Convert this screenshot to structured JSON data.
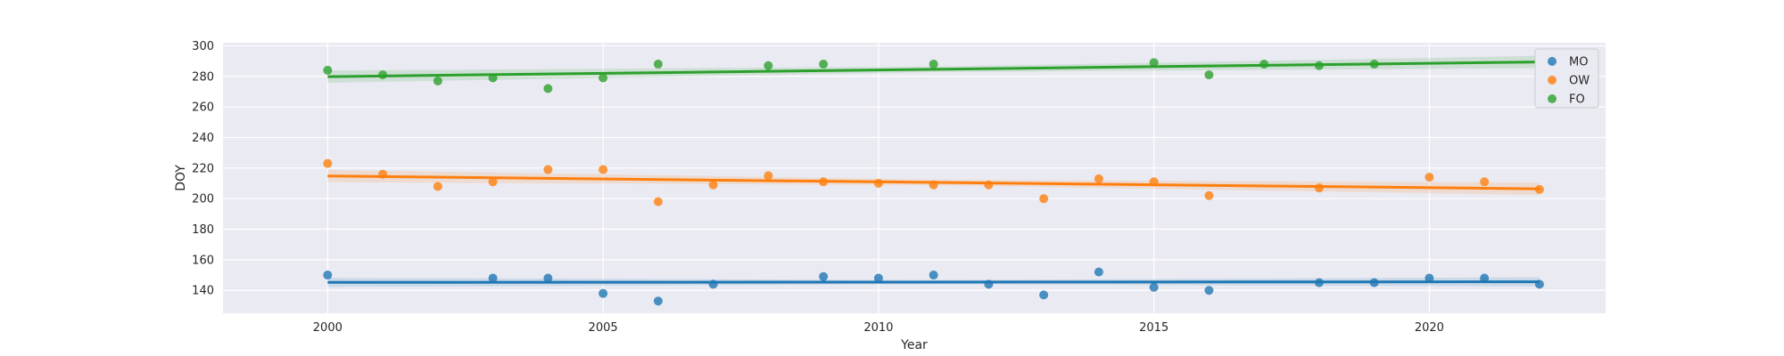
{
  "chart_data": {
    "type": "scatter",
    "xlabel": "Year",
    "ylabel": "DOY",
    "xlim": [
      1998.1,
      2023.2
    ],
    "ylim": [
      125,
      302
    ],
    "xticks": [
      2000,
      2005,
      2010,
      2015,
      2020
    ],
    "yticks": [
      140,
      160,
      180,
      200,
      220,
      240,
      260,
      280,
      300
    ],
    "grid": true,
    "legend_position": "top-right",
    "series": [
      {
        "name": "MO",
        "color": "#1f77b4",
        "points": [
          [
            2000,
            150
          ],
          [
            2003,
            148
          ],
          [
            2004,
            148
          ],
          [
            2005,
            138
          ],
          [
            2006,
            133
          ],
          [
            2007,
            144
          ],
          [
            2009,
            149
          ],
          [
            2010,
            148
          ],
          [
            2011,
            150
          ],
          [
            2012,
            144
          ],
          [
            2013,
            137
          ],
          [
            2014,
            152
          ],
          [
            2015,
            142
          ],
          [
            2016,
            140
          ],
          [
            2018,
            145
          ],
          [
            2019,
            145
          ],
          [
            2020,
            148
          ],
          [
            2021,
            148
          ],
          [
            2022,
            144
          ]
        ],
        "trend": [
          [
            2000,
            145.2
          ],
          [
            2022,
            145.6
          ]
        ],
        "ci_width": 3
      },
      {
        "name": "OW",
        "color": "#ff7f0e",
        "points": [
          [
            2000,
            223
          ],
          [
            2001,
            216
          ],
          [
            2002,
            208
          ],
          [
            2003,
            211
          ],
          [
            2004,
            219
          ],
          [
            2005,
            219
          ],
          [
            2006,
            198
          ],
          [
            2007,
            209
          ],
          [
            2008,
            215
          ],
          [
            2009,
            211
          ],
          [
            2010,
            210
          ],
          [
            2011,
            209
          ],
          [
            2012,
            209
          ],
          [
            2013,
            200
          ],
          [
            2014,
            213
          ],
          [
            2015,
            211
          ],
          [
            2016,
            202
          ],
          [
            2018,
            207
          ],
          [
            2020,
            214
          ],
          [
            2021,
            211
          ],
          [
            2022,
            206
          ]
        ],
        "trend": [
          [
            2000,
            214.8
          ],
          [
            2022,
            206.4
          ]
        ],
        "ci_width": 4
      },
      {
        "name": "FO",
        "color": "#2ca02c",
        "points": [
          [
            2000,
            284
          ],
          [
            2001,
            281
          ],
          [
            2002,
            277
          ],
          [
            2003,
            279
          ],
          [
            2004,
            272
          ],
          [
            2005,
            279
          ],
          [
            2006,
            288
          ],
          [
            2008,
            287
          ],
          [
            2009,
            288
          ],
          [
            2011,
            288
          ],
          [
            2015,
            289
          ],
          [
            2016,
            281
          ],
          [
            2017,
            288
          ],
          [
            2018,
            287
          ],
          [
            2019,
            288
          ],
          [
            2022,
            287
          ]
        ],
        "trend": [
          [
            2000,
            279.8
          ],
          [
            2022,
            289.4
          ]
        ],
        "ci_width": 4
      }
    ]
  }
}
